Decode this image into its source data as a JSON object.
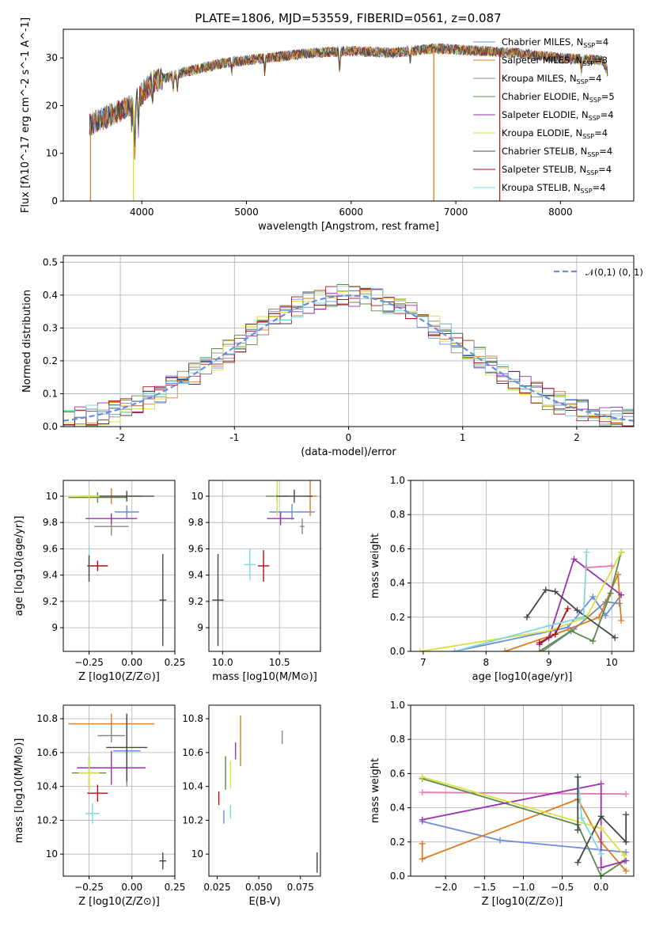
{
  "title": "PLATE=1806, MJD=53559, FIBERID=0561, z=0.087",
  "colors": [
    "#6a8be0",
    "#e07a1f",
    "#888888",
    "#5c8a4a",
    "#9b30b0",
    "#d9e040",
    "#444444",
    "#b01010",
    "#7fd8e0"
  ],
  "series_names": [
    "Chabrier MILES, N$_{SSP}$=4",
    "Salpeter MILES, N$_{SSP}$=3",
    "Kroupa MILES, N$_{SSP}$=4",
    "Chabrier ELODIE, N$_{SSP}$=5",
    "Salpeter ELODIE, N$_{SSP}$=4",
    "Kroupa ELODIE, N$_{SSP}$=4",
    "Chabrier STELIB, N$_{SSP}$=4",
    "Salpeter STELIB, N$_{SSP}$=4",
    "Kroupa STELIB, N$_{SSP}$=4"
  ],
  "legend_labels": [
    {
      "base": "Chabrier MILES, N",
      "sub": "SSP",
      "tail": "=4"
    },
    {
      "base": "Salpeter MILES, N",
      "sub": "SSP",
      "tail": "=3"
    },
    {
      "base": "Kroupa MILES, N",
      "sub": "SSP",
      "tail": "=4"
    },
    {
      "base": "Chabrier ELODIE, N",
      "sub": "SSP",
      "tail": "=5"
    },
    {
      "base": "Salpeter ELODIE, N",
      "sub": "SSP",
      "tail": "=4"
    },
    {
      "base": "Kroupa ELODIE, N",
      "sub": "SSP",
      "tail": "=4"
    },
    {
      "base": "Chabrier STELIB, N",
      "sub": "SSP",
      "tail": "=4"
    },
    {
      "base": "Salpeter STELIB, N",
      "sub": "SSP",
      "tail": "=4"
    },
    {
      "base": "Kroupa STELIB, N",
      "sub": "SSP",
      "tail": "=4"
    }
  ],
  "chart_data": [
    {
      "id": "spectrum",
      "type": "line",
      "xlabel": "wavelength [Angstrom, rest frame]",
      "ylabel": "Flux [f$_\\lambda$10$^{-17}$ erg cm$^{-2}$ s$^{-1}$ A$^{-1}$]",
      "xlim": [
        3250,
        8700
      ],
      "ylim": [
        0,
        36
      ],
      "xticks": [
        4000,
        5000,
        6000,
        7000,
        8000
      ],
      "yticks": [
        0,
        10,
        20,
        30
      ],
      "grid": false,
      "legend": "upper right",
      "continuum": [
        [
          3500,
          16
        ],
        [
          3700,
          18
        ],
        [
          3900,
          20
        ],
        [
          4100,
          25
        ],
        [
          4400,
          27
        ],
        [
          4800,
          29
        ],
        [
          5200,
          30
        ],
        [
          5600,
          31
        ],
        [
          6000,
          31.5
        ],
        [
          6400,
          31
        ],
        [
          6800,
          32
        ],
        [
          7200,
          31.5
        ],
        [
          7600,
          31
        ],
        [
          8000,
          30
        ],
        [
          8400,
          29.5
        ],
        [
          8450,
          27
        ]
      ],
      "edges": [
        {
          "series": 1,
          "x": 3510,
          "kind": "start",
          "y": 1
        },
        {
          "series": 5,
          "x": 3920,
          "kind": "start",
          "y": 0
        },
        {
          "series": 5,
          "x": 6790,
          "kind": "end",
          "y": 0
        },
        {
          "series": 1,
          "x": 6790,
          "kind": "end",
          "y": 0
        },
        {
          "series": 7,
          "x": 7420,
          "kind": "end",
          "y": 0
        }
      ]
    },
    {
      "id": "residuals",
      "type": "histogram",
      "xlabel": "(data-model)/error",
      "ylabel": "Normed distribution",
      "xlim": [
        -2.5,
        2.5
      ],
      "ylim": [
        0,
        0.52
      ],
      "xticks": [
        -2,
        -1,
        0,
        1,
        2
      ],
      "yticks": [
        0.0,
        0.1,
        0.2,
        0.3,
        0.4,
        0.5
      ],
      "grid": true,
      "legend": "upper right",
      "legend_label": "$\\mathcal{N}(0,1)$",
      "bin_width": 0.1
    },
    {
      "id": "age_vs_Z",
      "type": "errorbar",
      "xlabel": "Z [log$_{10}$(Z/Z$_\\odot$)]",
      "ylabel": "age  [log$_{10}$(age/yr)]",
      "xlim": [
        -0.4,
        0.25
      ],
      "ylim": [
        8.82,
        10.12
      ],
      "xticks": [
        -0.25,
        0.0,
        0.25
      ],
      "xticklabels": [
        "−0.25",
        "0.00",
        "0.25"
      ],
      "yticks": [
        9.0,
        9.2,
        9.4,
        9.6,
        9.8,
        10.0
      ],
      "grid": true,
      "points": [
        {
          "s": 0,
          "x": -0.03,
          "y": 9.88,
          "xerr": 0.07,
          "yerr": 0.05
        },
        {
          "s": 1,
          "x": -0.12,
          "y": 10.0,
          "xerr": 0.18,
          "yerr": 0.06
        },
        {
          "s": 2,
          "x": -0.12,
          "y": 9.77,
          "xerr": 0.1,
          "yerr": 0.07
        },
        {
          "s": 3,
          "x": -0.2,
          "y": 9.99,
          "xerr": 0.17,
          "yerr": 0.04
        },
        {
          "s": 4,
          "x": -0.12,
          "y": 9.83,
          "xerr": 0.15,
          "yerr": 0.04
        },
        {
          "s": 5,
          "x": -0.25,
          "y": 10.0,
          "xerr": 0.12,
          "yerr": 0.04
        },
        {
          "s": 6,
          "x": -0.03,
          "y": 10.0,
          "xerr": 0.16,
          "yerr": 0.04
        },
        {
          "s": 7,
          "x": -0.2,
          "y": 9.47,
          "xerr": 0.06,
          "yerr": 0.04
        },
        {
          "s": 8,
          "x": -0.25,
          "y": 9.52,
          "xerr": 0.0,
          "yerr": 0.1
        },
        {
          "s": 6,
          "x": 0.18,
          "y": 9.21,
          "xerr": 0.02,
          "yerr": 0.35
        },
        {
          "s": 6,
          "x": -0.25,
          "y": 9.45,
          "xerr": 0.0,
          "yerr": 0.1
        }
      ]
    },
    {
      "id": "age_vs_mass",
      "type": "errorbar",
      "xlabel": "mass [log$_{10}$(M/M$_\\odot$)]",
      "ylabel": "",
      "xlim": [
        9.88,
        10.86
      ],
      "ylim": [
        8.82,
        10.12
      ],
      "xticks": [
        10.0,
        10.5
      ],
      "xticklabels": [
        "10.0",
        "10.5"
      ],
      "yticks": [
        9.0,
        9.2,
        9.4,
        9.6,
        9.8,
        10.0
      ],
      "grid": true,
      "points": [
        {
          "s": 0,
          "x": 10.61,
          "y": 9.88,
          "xerr": 0.2,
          "yerr": 0.06
        },
        {
          "s": 1,
          "x": 10.77,
          "y": 10.0,
          "xerr": 0.06,
          "yerr": 0.15
        },
        {
          "s": 2,
          "x": 10.7,
          "y": 9.77,
          "xerr": 0.02,
          "yerr": 0.06
        },
        {
          "s": 3,
          "x": 10.48,
          "y": 10.0,
          "xerr": 0.1,
          "yerr": 0.05
        },
        {
          "s": 4,
          "x": 10.51,
          "y": 9.83,
          "xerr": 0.12,
          "yerr": 0.05
        },
        {
          "s": 5,
          "x": 10.48,
          "y": 10.0,
          "xerr": 0.02,
          "yerr": 0.15
        },
        {
          "s": 6,
          "x": 10.63,
          "y": 10.0,
          "xerr": 0.16,
          "yerr": 0.05
        },
        {
          "s": 7,
          "x": 10.36,
          "y": 9.47,
          "xerr": 0.05,
          "yerr": 0.12
        },
        {
          "s": 8,
          "x": 10.24,
          "y": 9.48,
          "xerr": 0.05,
          "yerr": 0.12
        },
        {
          "s": 6,
          "x": 9.96,
          "y": 9.21,
          "xerr": 0.05,
          "yerr": 0.35
        }
      ]
    },
    {
      "id": "weight_vs_age",
      "type": "line",
      "xlabel": "age  [log$_{10}$(age/yr)]",
      "ylabel": "mass weight",
      "xlim": [
        6.8,
        10.35
      ],
      "ylim": [
        0,
        1.0
      ],
      "xticks": [
        7,
        8,
        9,
        10
      ],
      "yticks": [
        0.0,
        0.2,
        0.4,
        0.6,
        0.8,
        1.0
      ],
      "grid": true,
      "series": [
        {
          "s": 0,
          "x": [
            7.5,
            9.3,
            9.7,
            9.9,
            10.15
          ],
          "y": [
            0.0,
            0.14,
            0.32,
            0.21,
            0.33
          ]
        },
        {
          "s": 1,
          "x": [
            8.3,
            9.1,
            9.8,
            10.1,
            10.15
          ],
          "y": [
            0.0,
            0.1,
            0.2,
            0.45,
            0.18
          ]
        },
        {
          "s": 2,
          "x": [
            8.9,
            9.4,
            9.9,
            10.12
          ],
          "y": [
            0.0,
            0.13,
            0.29,
            0.28
          ]
        },
        {
          "s": 3,
          "x": [
            8.85,
            9.35,
            9.7,
            9.98,
            10.15
          ],
          "y": [
            0.0,
            0.12,
            0.06,
            0.34,
            0.58
          ]
        },
        {
          "s": 4,
          "x": [
            8.85,
            9.0,
            9.4,
            10.15
          ],
          "y": [
            0.04,
            0.08,
            0.54,
            0.33
          ]
        },
        {
          "s": 5,
          "x": [
            6.95,
            9.0,
            9.6,
            10.15
          ],
          "y": [
            0.0,
            0.12,
            0.2,
            0.58
          ]
        },
        {
          "s": 6,
          "x": [
            8.65,
            8.95,
            9.1,
            9.45,
            10.05
          ],
          "y": [
            0.2,
            0.36,
            0.35,
            0.24,
            0.08
          ]
        },
        {
          "s": 7,
          "x": [
            8.85,
            9.1,
            9.3
          ],
          "y": [
            0.05,
            0.1,
            0.25
          ]
        },
        {
          "s": 8,
          "x": [
            7.5,
            9.0,
            9.55,
            9.6
          ],
          "y": [
            0.0,
            0.15,
            0.2,
            0.58
          ]
        },
        {
          "s": 9,
          "x": [
            9.6,
            10.0
          ],
          "y": [
            0.49,
            0.5
          ]
        }
      ]
    },
    {
      "id": "mass_vs_Z",
      "type": "errorbar",
      "xlabel": "Z [log$_{10}$(Z/Z$_\\odot$)]",
      "ylabel": "mass [log$_{10}$(M/M$_\\odot$)]",
      "xlim": [
        -0.4,
        0.25
      ],
      "ylim": [
        9.87,
        10.88
      ],
      "xticks": [
        -0.25,
        0.0,
        0.25
      ],
      "xticklabels": [
        "−0.25",
        "0.00",
        "0.25"
      ],
      "yticks": [
        10.0,
        10.2,
        10.4,
        10.6,
        10.8
      ],
      "grid": true,
      "points": [
        {
          "s": 0,
          "x": -0.03,
          "y": 10.61,
          "xerr": 0.08,
          "yerr": 0.21
        },
        {
          "s": 1,
          "x": -0.12,
          "y": 10.77,
          "xerr": 0.25,
          "yerr": 0.06
        },
        {
          "s": 2,
          "x": -0.12,
          "y": 10.7,
          "xerr": 0.08,
          "yerr": 0.04
        },
        {
          "s": 3,
          "x": -0.25,
          "y": 10.48,
          "xerr": 0.1,
          "yerr": 0.1
        },
        {
          "s": 4,
          "x": -0.12,
          "y": 10.51,
          "xerr": 0.2,
          "yerr": 0.1
        },
        {
          "s": 5,
          "x": -0.25,
          "y": 10.48,
          "xerr": 0.06,
          "yerr": 0.1
        },
        {
          "s": 6,
          "x": -0.03,
          "y": 10.63,
          "xerr": 0.12,
          "yerr": 0.2
        },
        {
          "s": 7,
          "x": -0.2,
          "y": 10.36,
          "xerr": 0.06,
          "yerr": 0.05
        },
        {
          "s": 8,
          "x": -0.23,
          "y": 10.24,
          "xerr": 0.04,
          "yerr": 0.06
        },
        {
          "s": 6,
          "x": 0.18,
          "y": 9.96,
          "xerr": 0.02,
          "yerr": 0.05
        }
      ]
    },
    {
      "id": "mass_vs_EBV",
      "type": "errorbar",
      "xlabel": "E(B-V)",
      "ylabel": "",
      "xlim": [
        0.02,
        0.087
      ],
      "ylim": [
        9.87,
        10.88
      ],
      "xticks": [
        0.025,
        0.05,
        0.075
      ],
      "xticklabels": [
        "0.025",
        "0.050",
        "0.075"
      ],
      "yticks": [
        10.0,
        10.2,
        10.4,
        10.6,
        10.8
      ],
      "grid": false,
      "points": [
        {
          "s": 0,
          "x": 0.029,
          "y": 10.22,
          "xerr": 0,
          "yerr": 0.04
        },
        {
          "s": 1,
          "x": 0.039,
          "y": 10.67,
          "xerr": 0,
          "yerr": 0.15
        },
        {
          "s": 2,
          "x": 0.064,
          "y": 10.69,
          "xerr": 0,
          "yerr": 0.04
        },
        {
          "s": 3,
          "x": 0.03,
          "y": 10.48,
          "xerr": 0,
          "yerr": 0.1
        },
        {
          "s": 4,
          "x": 0.036,
          "y": 10.61,
          "xerr": 0,
          "yerr": 0.05
        },
        {
          "s": 5,
          "x": 0.033,
          "y": 10.47,
          "xerr": 0,
          "yerr": 0.08
        },
        {
          "s": 6,
          "x": 0.085,
          "y": 9.95,
          "xerr": 0,
          "yerr": 0.06
        },
        {
          "s": 7,
          "x": 0.026,
          "y": 10.33,
          "xerr": 0,
          "yerr": 0.04
        },
        {
          "s": 8,
          "x": 0.033,
          "y": 10.25,
          "xerr": 0,
          "yerr": 0.04
        }
      ]
    },
    {
      "id": "weight_vs_Z",
      "type": "line",
      "xlabel": "Z [log$_{10}$(Z/Z$_\\odot$)]",
      "ylabel": "mass weight",
      "xlim": [
        -2.45,
        0.42
      ],
      "ylim": [
        0,
        1.0
      ],
      "xticks": [
        -2.0,
        -1.5,
        -1.0,
        -0.5,
        0.0
      ],
      "xticklabels": [
        "−2.0",
        "−1.5",
        "−1.0",
        "−0.5",
        "0.0"
      ],
      "yticks": [
        0.0,
        0.2,
        0.4,
        0.6,
        0.8,
        1.0
      ],
      "grid": true,
      "series": [
        {
          "s": 0,
          "x": [
            -2.3,
            -1.3,
            0.32
          ],
          "y": [
            0.32,
            0.21,
            0.14
          ]
        },
        {
          "s": 1,
          "x": [
            -2.3,
            -0.3,
            0.0,
            0.32
          ],
          "y": [
            0.1,
            0.45,
            0.2,
            0.03
          ]
        },
        {
          "s": 1,
          "x": [
            -2.3,
            -2.3
          ],
          "y": [
            0.1,
            0.19
          ]
        },
        {
          "s": 9,
          "x": [
            -2.3,
            0.32
          ],
          "y": [
            0.49,
            0.48
          ]
        },
        {
          "s": 3,
          "x": [
            -2.3,
            -0.3,
            0.0,
            0.3
          ],
          "y": [
            0.57,
            0.3,
            0.0,
            0.09
          ]
        },
        {
          "s": 4,
          "x": [
            -2.3,
            0.0,
            0.0,
            0.32
          ],
          "y": [
            0.33,
            0.54,
            0.05,
            0.09
          ]
        },
        {
          "s": 5,
          "x": [
            -2.3,
            0.0,
            0.3
          ],
          "y": [
            0.58,
            0.28,
            0.12
          ]
        },
        {
          "s": 6,
          "x": [
            -0.3,
            0.0,
            0.32,
            0.32
          ],
          "y": [
            0.08,
            0.35,
            0.2,
            0.36
          ]
        },
        {
          "s": 8,
          "x": [
            -0.3,
            -0.25,
            0.0
          ],
          "y": [
            0.58,
            0.34,
            0.13
          ]
        },
        {
          "s": 6,
          "x": [
            -0.3,
            -0.3
          ],
          "y": [
            0.58,
            0.27
          ]
        }
      ]
    }
  ]
}
